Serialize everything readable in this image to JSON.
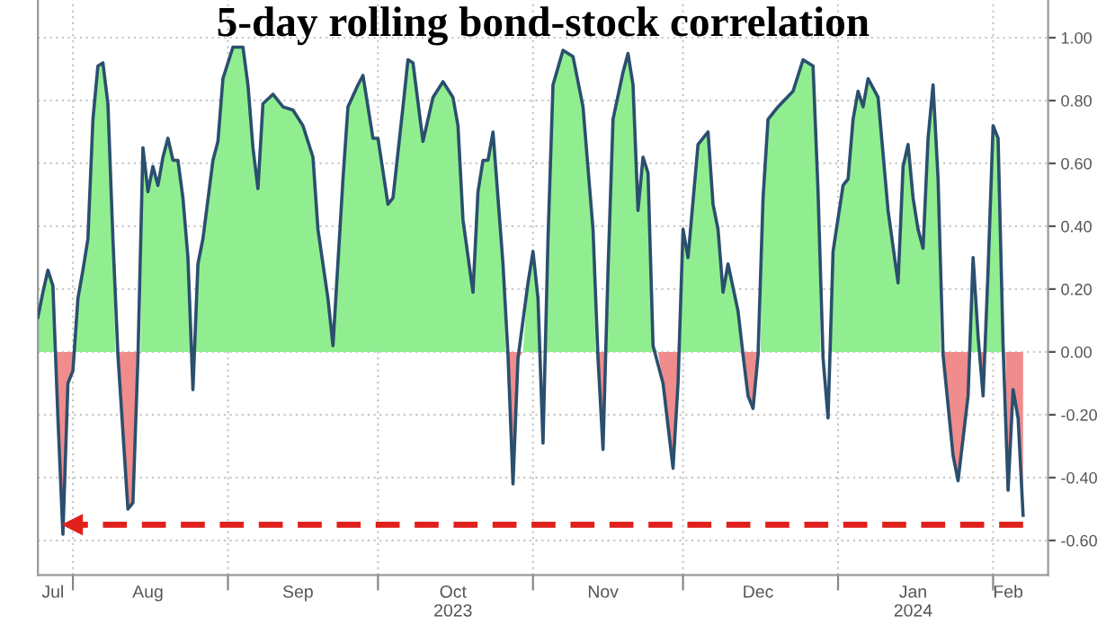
{
  "chart_data": {
    "type": "area",
    "title": "5-day rolling bond-stock correlation",
    "x": [
      "2023-07-25",
      "2023-07-26",
      "2023-07-27",
      "2023-07-28",
      "2023-07-29",
      "2023-07-30",
      "2023-07-31",
      "2023-08-01",
      "2023-08-02",
      "2023-08-03",
      "2023-08-04",
      "2023-08-05",
      "2023-08-06",
      "2023-08-07",
      "2023-08-08",
      "2023-08-09",
      "2023-08-10",
      "2023-08-12",
      "2023-08-13",
      "2023-08-14",
      "2023-08-15",
      "2023-08-16",
      "2023-08-17",
      "2023-08-18",
      "2023-08-19",
      "2023-08-20",
      "2023-08-21",
      "2023-08-22",
      "2023-08-23",
      "2023-08-24",
      "2023-08-25",
      "2023-08-26",
      "2023-08-27",
      "2023-08-29",
      "2023-08-30",
      "2023-08-31",
      "2023-09-02",
      "2023-09-04",
      "2023-09-05",
      "2023-09-06",
      "2023-09-07",
      "2023-09-08",
      "2023-09-10",
      "2023-09-12",
      "2023-09-14",
      "2023-09-16",
      "2023-09-18",
      "2023-09-19",
      "2023-09-21",
      "2023-09-22",
      "2023-09-24",
      "2023-09-25",
      "2023-09-27",
      "2023-09-28",
      "2023-09-30",
      "2023-10-01",
      "2023-10-03",
      "2023-10-04",
      "2023-10-06",
      "2023-10-07",
      "2023-10-08",
      "2023-10-10",
      "2023-10-12",
      "2023-10-14",
      "2023-10-16",
      "2023-10-17",
      "2023-10-18",
      "2023-10-20",
      "2023-10-21",
      "2023-10-22",
      "2023-10-23",
      "2023-10-24",
      "2023-10-26",
      "2023-10-27",
      "2023-10-28",
      "2023-10-29",
      "2023-10-31",
      "2023-11-01",
      "2023-11-02",
      "2023-11-03",
      "2023-11-04",
      "2023-11-05",
      "2023-11-07",
      "2023-11-09",
      "2023-11-11",
      "2023-11-13",
      "2023-11-14",
      "2023-11-15",
      "2023-11-16",
      "2023-11-17",
      "2023-11-19",
      "2023-11-20",
      "2023-11-21",
      "2023-11-22",
      "2023-11-23",
      "2023-11-24",
      "2023-11-25",
      "2023-11-27",
      "2023-11-29",
      "2023-11-30",
      "2023-12-01",
      "2023-12-02",
      "2023-12-04",
      "2023-12-06",
      "2023-12-07",
      "2023-12-08",
      "2023-12-09",
      "2023-12-10",
      "2023-12-12",
      "2023-12-13",
      "2023-12-14",
      "2023-12-15",
      "2023-12-16",
      "2023-12-17",
      "2023-12-18",
      "2023-12-20",
      "2023-12-23",
      "2023-12-25",
      "2023-12-27",
      "2023-12-28",
      "2023-12-29",
      "2023-12-30",
      "2023-12-31",
      "2024-01-02",
      "2024-01-03",
      "2024-01-04",
      "2024-01-05",
      "2024-01-06",
      "2024-01-07",
      "2024-01-09",
      "2024-01-11",
      "2024-01-13",
      "2024-01-14",
      "2024-01-15",
      "2024-01-16",
      "2024-01-17",
      "2024-01-18",
      "2024-01-19",
      "2024-01-20",
      "2024-01-21",
      "2024-01-22",
      "2024-01-24",
      "2024-01-25",
      "2024-01-27",
      "2024-01-28",
      "2024-01-29",
      "2024-01-30",
      "2024-01-31",
      "2024-02-01",
      "2024-02-02",
      "2024-02-03",
      "2024-02-04",
      "2024-02-05",
      "2024-02-06",
      "2024-02-07"
    ],
    "series": [
      {
        "color": "#90ee90",
        "values": [
          0.11,
          0.19,
          0.26,
          0.21,
          null,
          null,
          null,
          null,
          0.17,
          0.26,
          0.36,
          0.74,
          0.91,
          0.92,
          0.79,
          0.36,
          null,
          null,
          null,
          null,
          0.65,
          0.51,
          0.59,
          0.53,
          0.62,
          0.68,
          0.61,
          0.61,
          0.49,
          0.3,
          null,
          0.28,
          0.36,
          0.61,
          0.67,
          0.87,
          0.97,
          0.97,
          0.85,
          0.65,
          0.52,
          0.79,
          0.82,
          0.78,
          0.77,
          0.72,
          0.62,
          0.39,
          0.17,
          0.02,
          0.55,
          0.78,
          0.85,
          0.88,
          0.68,
          0.68,
          0.47,
          0.49,
          0.78,
          0.93,
          0.92,
          0.67,
          0.81,
          0.86,
          0.81,
          0.72,
          0.42,
          0.19,
          0.51,
          0.61,
          0.61,
          0.7,
          0.28,
          null,
          null,
          null,
          0.22,
          0.32,
          0.17,
          null,
          0.36,
          0.85,
          0.96,
          0.94,
          0.78,
          0.39,
          null,
          null,
          0.26,
          0.74,
          0.89,
          0.95,
          0.85,
          0.45,
          0.62,
          0.57,
          0.02,
          null,
          null,
          null,
          0.39,
          0.3,
          0.66,
          0.7,
          0.47,
          0.39,
          0.19,
          0.28,
          0.13,
          null,
          null,
          null,
          null,
          0.49,
          0.74,
          0.78,
          0.83,
          0.93,
          0.91,
          0.51,
          null,
          null,
          0.32,
          0.53,
          0.55,
          0.74,
          0.83,
          0.78,
          0.87,
          0.81,
          0.45,
          0.22,
          0.59,
          0.66,
          0.49,
          0.39,
          0.33,
          0.68,
          0.85,
          0.55,
          null,
          null,
          null,
          null,
          0.3,
          0.05,
          null,
          0.26,
          0.72,
          0.68,
          0.02,
          null,
          null,
          null,
          null
        ]
      },
      {
        "color": "#f08c8c",
        "values": [
          null,
          null,
          null,
          null,
          -0.21,
          -0.58,
          -0.1,
          -0.06,
          null,
          null,
          null,
          null,
          null,
          null,
          null,
          null,
          -0.01,
          -0.5,
          -0.48,
          -0.02,
          null,
          null,
          null,
          null,
          null,
          null,
          null,
          null,
          null,
          null,
          null,
          null,
          null,
          null,
          null,
          null,
          null,
          null,
          null,
          null,
          null,
          null,
          null,
          null,
          null,
          null,
          null,
          null,
          null,
          null,
          null,
          null,
          null,
          null,
          null,
          null,
          null,
          null,
          null,
          null,
          null,
          null,
          null,
          null,
          null,
          null,
          null,
          null,
          null,
          null,
          null,
          null,
          null,
          -0.01,
          -0.42,
          -0.02,
          null,
          null,
          null,
          null,
          null,
          null,
          null,
          null,
          null,
          null,
          -0.02,
          -0.31,
          null,
          null,
          null,
          null,
          null,
          null,
          null,
          null,
          null,
          -0.1,
          -0.37,
          -0.1,
          null,
          null,
          null,
          null,
          null,
          null,
          null,
          null,
          null,
          -0.01,
          -0.14,
          -0.18,
          -0.01,
          null,
          null,
          null,
          null,
          null,
          null,
          null,
          null,
          null,
          null,
          null,
          null,
          null,
          null,
          null,
          null,
          null,
          null,
          null,
          null,
          null,
          null,
          null,
          null,
          null,
          null,
          null,
          -0.01,
          -0.33,
          -0.41,
          -0.14,
          null,
          null,
          -0.14,
          null,
          null,
          null,
          null,
          -0.44,
          -0.12,
          -0.21,
          -0.52
        ]
      },
      {
        "type": "line",
        "color": "#2b4f6e",
        "values": [
          0.11,
          0.19,
          0.26,
          0.21,
          -0.21,
          -0.58,
          -0.1,
          -0.06,
          0.17,
          0.26,
          0.36,
          0.74,
          0.91,
          0.92,
          0.79,
          0.36,
          -0.01,
          -0.5,
          -0.48,
          -0.02,
          0.65,
          0.51,
          0.59,
          0.53,
          0.62,
          0.68,
          0.61,
          0.61,
          0.49,
          0.3,
          -0.12,
          0.28,
          0.36,
          0.61,
          0.67,
          0.87,
          0.97,
          0.97,
          0.85,
          0.65,
          0.52,
          0.79,
          0.82,
          0.78,
          0.77,
          0.72,
          0.62,
          0.39,
          0.17,
          0.02,
          0.55,
          0.78,
          0.85,
          0.88,
          0.68,
          0.68,
          0.47,
          0.49,
          0.78,
          0.93,
          0.92,
          0.67,
          0.81,
          0.86,
          0.81,
          0.72,
          0.42,
          0.19,
          0.51,
          0.61,
          0.61,
          0.7,
          0.28,
          -0.01,
          -0.42,
          -0.02,
          0.22,
          0.32,
          0.17,
          -0.29,
          0.36,
          0.85,
          0.96,
          0.94,
          0.78,
          0.39,
          -0.02,
          -0.31,
          0.26,
          0.74,
          0.89,
          0.95,
          0.85,
          0.45,
          0.62,
          0.57,
          0.02,
          -0.1,
          -0.37,
          -0.1,
          0.39,
          0.3,
          0.66,
          0.7,
          0.47,
          0.39,
          0.19,
          0.28,
          0.13,
          -0.01,
          -0.14,
          -0.18,
          -0.01,
          0.49,
          0.74,
          0.78,
          0.83,
          0.93,
          0.91,
          0.51,
          -0.02,
          -0.21,
          0.32,
          0.53,
          0.55,
          0.74,
          0.83,
          0.78,
          0.87,
          0.81,
          0.45,
          0.22,
          0.59,
          0.66,
          0.49,
          0.39,
          0.33,
          0.68,
          0.85,
          0.55,
          -0.01,
          -0.33,
          -0.41,
          -0.14,
          0.3,
          0.05,
          -0.14,
          0.26,
          0.72,
          0.68,
          0.02,
          -0.44,
          -0.12,
          -0.21,
          -0.52
        ]
      }
    ],
    "xlim": [
      "2023-07-25",
      "2024-02-12"
    ],
    "xticks": [
      {
        "value": "2023-08-01",
        "label": null
      },
      {
        "value": "2023-09-01",
        "label": null
      },
      {
        "value": "2023-10-01",
        "label": null
      },
      {
        "value": "2023-11-01",
        "label": null
      },
      {
        "value": "2023-12-01",
        "label": null
      },
      {
        "value": "2024-01-01",
        "label": null
      },
      {
        "value": "2024-02-01",
        "label": null
      },
      {
        "value": "2023-07-28",
        "label": "Jul"
      },
      {
        "value": "2023-08-16",
        "label": "Aug"
      },
      {
        "value": "2023-09-15",
        "label": "Sep"
      },
      {
        "value": "2023-10-16",
        "label": "Oct\n2023"
      },
      {
        "value": "2023-11-15",
        "label": "Nov"
      },
      {
        "value": "2023-12-16",
        "label": "Dec"
      },
      {
        "value": "2024-01-16",
        "label": "Jan\n2024"
      },
      {
        "value": "2024-02-04",
        "label": "Feb"
      }
    ],
    "ylim": [
      -0.71,
      1.12
    ],
    "yticks": [
      {
        "value": -0.6,
        "label": "-0.60"
      },
      {
        "value": -0.4,
        "label": "-0.40"
      },
      {
        "value": -0.2,
        "label": "-0.20"
      },
      {
        "value": 0,
        "label": "0.00"
      },
      {
        "value": 0.2,
        "label": "0.20"
      },
      {
        "value": 0.4,
        "label": "0.40"
      },
      {
        "value": 0.6,
        "label": "0.60"
      },
      {
        "value": 0.8,
        "label": "0.80"
      },
      {
        "value": 1.0,
        "label": "1.00"
      }
    ],
    "grid": true,
    "ref_lines": [
      {
        "axis": "y",
        "value": -0.55,
        "color": "#e0201c",
        "line_style": "dashed"
      }
    ]
  }
}
